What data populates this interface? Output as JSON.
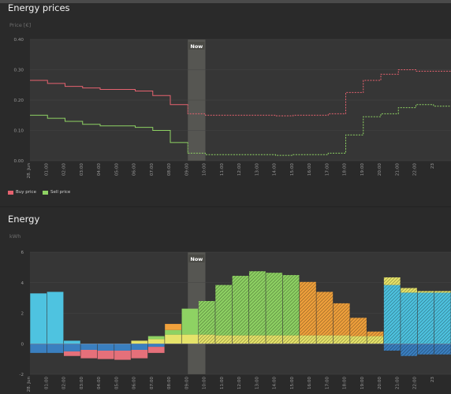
{
  "price_section": {
    "title": "Energy prices",
    "unit": "Price [€]",
    "legend": [
      {
        "label": "Buy price",
        "color": "#e5626f"
      },
      {
        "label": "Sell price",
        "color": "#8ed263"
      }
    ]
  },
  "energy_section": {
    "title": "Energy",
    "unit": "kWh"
  },
  "now_label": "Now",
  "x_ticks": [
    "28. Jun",
    "01:00",
    "02:00",
    "03:00",
    "04:00",
    "05:00",
    "06:00",
    "07:00",
    "08:00",
    "09:00",
    "10:00",
    "11:00",
    "12:00",
    "13:00",
    "14:00",
    "15:00",
    "16:00",
    "17:00",
    "18:00",
    "19:00",
    "20:00",
    "21:00",
    "22:00",
    "23"
  ],
  "chart_data": [
    {
      "type": "line",
      "title": "Energy prices",
      "ylabel": "Price [€]",
      "ylim": [
        0,
        0.4
      ],
      "y_ticks": [
        "0.00",
        "0.10",
        "0.20",
        "0.30",
        "0.40"
      ],
      "step": true,
      "now_index": 9,
      "series": [
        {
          "name": "Buy price",
          "color": "#e5626f",
          "values": [
            0.265,
            0.255,
            0.245,
            0.24,
            0.235,
            0.235,
            0.23,
            0.215,
            0.185,
            0.155,
            0.15,
            0.15,
            0.15,
            0.15,
            0.148,
            0.15,
            0.15,
            0.155,
            0.225,
            0.265,
            0.285,
            0.3,
            0.295,
            0.295
          ]
        },
        {
          "name": "Sell price",
          "color": "#8ed263",
          "values": [
            0.15,
            0.14,
            0.13,
            0.12,
            0.115,
            0.115,
            0.11,
            0.1,
            0.06,
            0.025,
            0.02,
            0.02,
            0.02,
            0.02,
            0.018,
            0.02,
            0.02,
            0.025,
            0.085,
            0.145,
            0.155,
            0.175,
            0.185,
            0.18
          ]
        }
      ]
    },
    {
      "type": "bar",
      "title": "Energy",
      "ylabel": "kWh",
      "ylim": [
        -2,
        6
      ],
      "y_ticks": [
        "-2",
        "0",
        "2",
        "4",
        "6"
      ],
      "now_index": 9,
      "series": [
        {
          "name": "",
          "color": "#4ec3e0",
          "values": [
            3.3,
            3.4,
            0.2,
            0,
            0,
            0,
            0,
            0,
            0,
            0,
            0,
            0,
            0,
            0,
            0,
            0,
            0,
            0,
            0,
            0,
            0,
            3.85,
            3.35,
            3.35,
            3.35
          ]
        },
        {
          "name": "",
          "color": "#3a7fc0",
          "values": [
            -0.6,
            -0.6,
            -0.5,
            -0.4,
            -0.45,
            -0.45,
            -0.4,
            -0.2,
            0,
            0,
            0,
            0,
            0,
            0,
            0,
            0,
            0,
            0,
            0,
            0,
            0,
            -0.45,
            -0.8,
            -0.7,
            -0.7
          ]
        },
        {
          "name": "",
          "color": "#e5707a",
          "values": [
            0,
            0,
            -0.3,
            -0.55,
            -0.55,
            -0.6,
            -0.55,
            -0.4,
            0,
            0,
            0,
            0,
            0,
            0,
            0,
            0,
            0,
            0,
            0,
            0,
            0,
            0,
            0,
            0,
            0
          ]
        },
        {
          "name": "",
          "color": "#e6e36a",
          "values": [
            0,
            0,
            0,
            0,
            0,
            0,
            0.2,
            0.3,
            0.6,
            0.6,
            0.6,
            0.55,
            0.55,
            0.55,
            0.55,
            0.55,
            0.55,
            0.55,
            0.55,
            0.5,
            0.5,
            0.5,
            0.3,
            0.1,
            0.1
          ]
        },
        {
          "name": "",
          "color": "#8ed263",
          "values": [
            0,
            0,
            0,
            0,
            0,
            0,
            0,
            0.2,
            0.3,
            1.7,
            2.2,
            3.3,
            3.9,
            4.2,
            4.1,
            3.95,
            0,
            0,
            0,
            0,
            0,
            0,
            0,
            0,
            0
          ]
        },
        {
          "name": "",
          "color": "#f0a13c",
          "values": [
            0,
            0,
            0,
            0,
            0,
            0,
            0,
            0,
            0.4,
            0,
            0,
            0,
            0,
            0,
            0,
            0,
            3.5,
            2.85,
            2.1,
            1.2,
            0.3,
            0,
            0,
            0,
            0
          ]
        }
      ]
    }
  ],
  "colors": {
    "background": "#2a2a2a",
    "plot_background": "#363636",
    "now_band": "#5a5a55",
    "grid": "#444444"
  }
}
